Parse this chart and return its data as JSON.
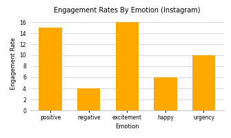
{
  "categories": [
    "positive",
    "negative",
    "excitement",
    "happy",
    "urgency"
  ],
  "values": [
    15,
    4,
    16,
    6,
    10
  ],
  "bar_color": "#FFA800",
  "title": "Engagement Rates By Emotion (Instagram)",
  "xlabel": "Emotion",
  "ylabel": "Engagement Rate",
  "ylim": [
    0,
    17
  ],
  "yticks": [
    0,
    2,
    4,
    6,
    8,
    10,
    12,
    14,
    16
  ],
  "background_color": "#ffffff",
  "title_fontsize": 7,
  "label_fontsize": 6,
  "tick_fontsize": 5.5,
  "bar_width": 0.6
}
